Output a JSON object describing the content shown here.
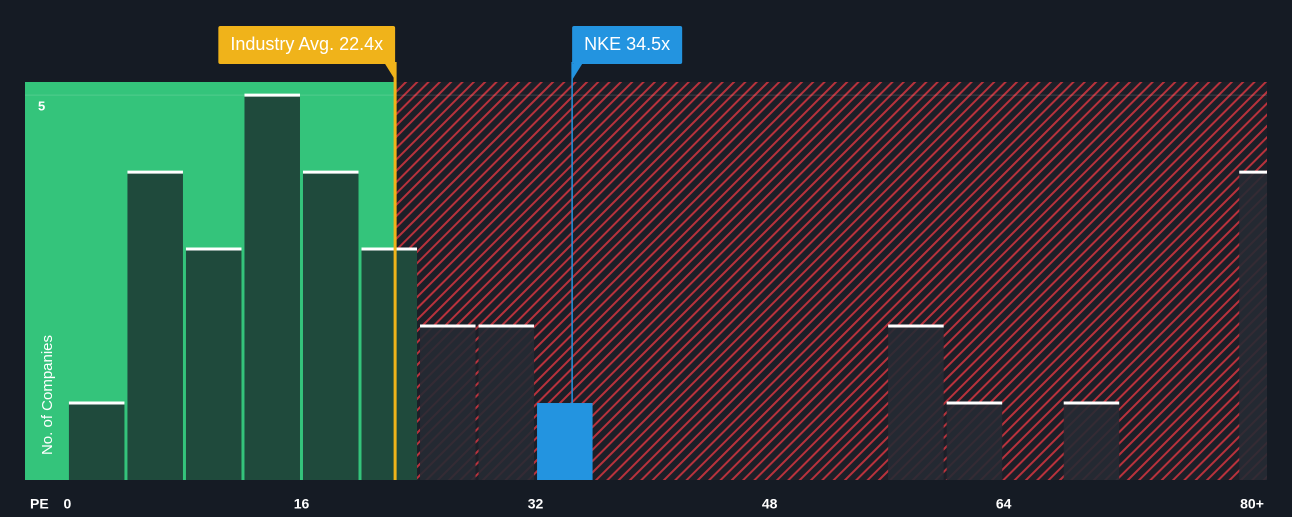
{
  "chart_data": {
    "type": "histogram",
    "x_label": "PE",
    "y_label": "No. of Companies",
    "bins": [
      0,
      4,
      8,
      12,
      16,
      20,
      24,
      28,
      32,
      36,
      40,
      44,
      48,
      52,
      56,
      60,
      64,
      68,
      72,
      76,
      80,
      84
    ],
    "counts": [
      1,
      4,
      3,
      5,
      4,
      3,
      2,
      2,
      1,
      0,
      0,
      0,
      0,
      0,
      2,
      1,
      0,
      1,
      0,
      0,
      4
    ],
    "xlim": [
      -2.9,
      82
    ],
    "ylim": [
      0,
      5.17
    ],
    "xticks": [
      0,
      16,
      32,
      48,
      64,
      {
        "value": 80,
        "label": "80+"
      }
    ],
    "yticks": [
      5
    ],
    "grid": true,
    "color": "#1f4a3c",
    "above_average_color": "#262a33",
    "highlight_color": "#2394e0",
    "fair_zone_color": "#34c47b",
    "overvalued_zone_color": "#b8323c",
    "annotations": [
      {
        "label": "Industry Avg. 22.4x",
        "value": 22.4,
        "color": "#f0b31a"
      },
      {
        "label": "NKE 34.5x",
        "value": 34.5,
        "color": "#2394e0"
      }
    ]
  }
}
